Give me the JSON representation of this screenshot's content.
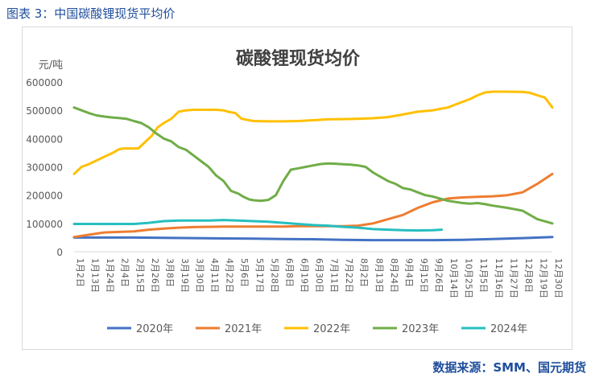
{
  "figure_caption": "图表 3：中国碳酸锂现货平均价",
  "source_note": "数据来源：SMM、国元期货",
  "colors": {
    "caption": "#1f4e9c",
    "axis_text": "#595959",
    "axis_line": "#d9d9d9"
  },
  "chart_data": {
    "type": "line",
    "title": "碳酸锂现货均价",
    "ylabel": "元/吨",
    "ylim": [
      0,
      600000
    ],
    "yticks": [
      0,
      100000,
      200000,
      300000,
      400000,
      500000,
      600000
    ],
    "ytick_labels": [
      "0",
      "100000",
      "200000",
      "300000",
      "400000",
      "500000",
      "600000"
    ],
    "x_tick_labels": [
      "1月2日",
      "1月13日",
      "1月24日",
      "2月4日",
      "2月15日",
      "2月26日",
      "3月8日",
      "3月19日",
      "3月30日",
      "4月11日",
      "4月22日",
      "5月6日",
      "5月17日",
      "5月28日",
      "6月8日",
      "6月19日",
      "6月30日",
      "7月11日",
      "7月22日",
      "8月2日",
      "8月13日",
      "8月24日",
      "9月4日",
      "9月15日",
      "9月26日",
      "10月14日",
      "10月25日",
      "11月5日",
      "11月16日",
      "11月27日",
      "12月8日",
      "12月19日",
      "12月30日"
    ],
    "grid": false,
    "legend_position": "bottom",
    "series": [
      {
        "name": "2020年",
        "color": "#4472c4",
        "x": [
          0,
          2,
          4,
          6,
          8,
          10,
          12,
          14,
          16,
          18,
          20,
          22,
          24,
          26,
          28,
          30,
          32
        ],
        "y": [
          50000,
          50000,
          50000,
          49000,
          48000,
          47000,
          46000,
          45000,
          44000,
          42000,
          41000,
          41000,
          41000,
          42000,
          45000,
          48000,
          52000
        ]
      },
      {
        "name": "2021年",
        "color": "#ed7d31",
        "x": [
          0,
          1,
          2,
          3,
          4,
          5,
          6,
          7,
          8,
          9,
          10,
          11,
          12,
          13,
          14,
          15,
          16,
          17,
          18,
          19,
          20,
          21,
          22,
          23,
          24,
          25,
          26,
          27,
          28,
          29,
          30,
          31,
          32
        ],
        "y": [
          52000,
          60000,
          68000,
          70000,
          72000,
          78000,
          82000,
          85000,
          87000,
          88000,
          89000,
          89000,
          89000,
          89000,
          89000,
          90000,
          90000,
          90000,
          90000,
          92000,
          100000,
          115000,
          130000,
          155000,
          175000,
          188000,
          192000,
          194000,
          196000,
          200000,
          210000,
          240000,
          275000
        ]
      },
      {
        "name": "2022年",
        "color": "#ffc000",
        "x": [
          0,
          0.5,
          1,
          1.6,
          2,
          2.6,
          3,
          3.3,
          3.8,
          4.3,
          4.7,
          5.2,
          5.6,
          6,
          6.5,
          7,
          7.5,
          8,
          8.5,
          9,
          9.5,
          10,
          10.3,
          10.8,
          11.2,
          12,
          13,
          14,
          15,
          16,
          17,
          18,
          19,
          20,
          21,
          22,
          23,
          24,
          24.5,
          25,
          25.5,
          26,
          26.5,
          27,
          27.5,
          28,
          29,
          30,
          30.5,
          31,
          31.5,
          32
        ],
        "y": [
          275000,
          300000,
          310000,
          325000,
          335000,
          350000,
          362000,
          365000,
          365000,
          365000,
          385000,
          410000,
          440000,
          455000,
          470000,
          495000,
          500000,
          502000,
          502000,
          502000,
          502000,
          500000,
          495000,
          490000,
          470000,
          462000,
          461000,
          461000,
          462000,
          465000,
          468000,
          469000,
          470000,
          472000,
          476000,
          485000,
          495000,
          500000,
          505000,
          510000,
          520000,
          530000,
          540000,
          553000,
          563000,
          566000,
          566000,
          565000,
          562000,
          553000,
          545000,
          510000
        ]
      },
      {
        "name": "2023年",
        "color": "#70ad47",
        "x": [
          0,
          0.5,
          1,
          1.5,
          2,
          2.5,
          3,
          3.5,
          4,
          4.5,
          5,
          5.5,
          6,
          6.5,
          7,
          7.5,
          8,
          8.5,
          9,
          9.5,
          10,
          10.5,
          11,
          11.3,
          11.7,
          12,
          12.5,
          13,
          13.5,
          14,
          14.5,
          15,
          16,
          16.5,
          17,
          17.5,
          18,
          18.5,
          19,
          19.5,
          20,
          20.5,
          21,
          21.5,
          22,
          22.5,
          23,
          23.5,
          24,
          25,
          26,
          26.5,
          27,
          27.5,
          28,
          29,
          30,
          30.5,
          31,
          32
        ],
        "y": [
          510000,
          500000,
          490000,
          482000,
          478000,
          475000,
          473000,
          470000,
          462000,
          455000,
          440000,
          418000,
          400000,
          390000,
          370000,
          360000,
          340000,
          320000,
          300000,
          270000,
          250000,
          215000,
          205000,
          195000,
          185000,
          182000,
          180000,
          183000,
          200000,
          250000,
          290000,
          295000,
          305000,
          310000,
          312000,
          311000,
          309000,
          308000,
          305000,
          300000,
          280000,
          265000,
          250000,
          240000,
          225000,
          220000,
          210000,
          200000,
          195000,
          180000,
          172000,
          170000,
          172000,
          168000,
          163000,
          155000,
          145000,
          130000,
          115000,
          100000
        ]
      },
      {
        "name": "2024年",
        "color": "#26bfbf",
        "x": [
          0,
          1,
          2,
          3,
          4,
          5,
          6,
          7,
          8,
          9,
          10,
          11,
          12,
          13,
          14,
          15,
          16,
          17,
          18,
          19,
          20,
          21,
          22,
          23,
          24,
          24.6
        ],
        "y": [
          98000,
          98000,
          98000,
          98000,
          98000,
          102000,
          108000,
          110000,
          110000,
          110000,
          112000,
          110000,
          108000,
          106000,
          102000,
          98000,
          94000,
          92000,
          88000,
          85000,
          80000,
          78000,
          76000,
          75000,
          76000,
          78000
        ]
      }
    ]
  }
}
